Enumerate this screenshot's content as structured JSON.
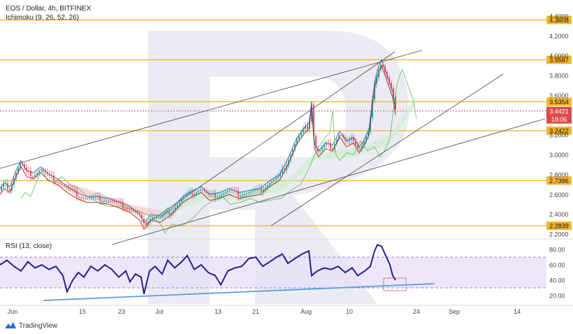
{
  "header": {
    "title": "EOS / Dollar, 4h, BITFINEX",
    "indicator": "Ichimoku (9, 26, 52, 26)",
    "rsi_label": "RSI (13, close)"
  },
  "brand": {
    "name": "TradingView"
  },
  "colors": {
    "level": "#f2b52c",
    "current_price": "#e04a4a",
    "rsi_line": "#2a1c8f",
    "rsi_band": "#e9e1f8",
    "trendline": "#444444",
    "rsi_trendline": "#5b9ae6",
    "cloud_red": "#f6c9c9",
    "cloud_green": "#cfeecf",
    "watermark": "#1e2a7a"
  },
  "chart_data": [
    {
      "type": "candlestick",
      "title": "EOS / Dollar, 4h, BITFINEX",
      "x_ticks": [
        "Jun",
        "15",
        "23",
        "Jul",
        "13",
        "21",
        "Aug",
        "10",
        "24",
        "Sep",
        "14"
      ],
      "y_ticks": [
        "4.4000",
        "4.2000",
        "4.0000",
        "3.8000",
        "3.6000",
        "3.2000",
        "3.0000",
        "2.8000",
        "2.6000",
        "2.4000",
        "2.2000"
      ],
      "ylim": [
        2.14,
        4.46
      ],
      "horizontal_levels": [
        "4.3608",
        "3.9587",
        "3.5354",
        "3.2422",
        "2.7396",
        "2.2839"
      ],
      "current_price": "3.4421",
      "countdown": "19:06",
      "price_path": [
        [
          0,
          2.64
        ],
        [
          6,
          2.7
        ],
        [
          14,
          2.66
        ],
        [
          24,
          2.84
        ],
        [
          30,
          2.92
        ],
        [
          38,
          2.82
        ],
        [
          48,
          2.8
        ],
        [
          58,
          2.86
        ],
        [
          70,
          2.78
        ],
        [
          82,
          2.74
        ],
        [
          96,
          2.66
        ],
        [
          110,
          2.6
        ],
        [
          124,
          2.56
        ],
        [
          140,
          2.56
        ],
        [
          156,
          2.54
        ],
        [
          172,
          2.5
        ],
        [
          186,
          2.46
        ],
        [
          200,
          2.38
        ],
        [
          206,
          2.29
        ],
        [
          216,
          2.38
        ],
        [
          230,
          2.36
        ],
        [
          246,
          2.44
        ],
        [
          262,
          2.56
        ],
        [
          276,
          2.62
        ],
        [
          288,
          2.66
        ],
        [
          300,
          2.58
        ],
        [
          314,
          2.6
        ],
        [
          328,
          2.64
        ],
        [
          342,
          2.6
        ],
        [
          356,
          2.62
        ],
        [
          372,
          2.64
        ],
        [
          386,
          2.72
        ],
        [
          400,
          2.78
        ],
        [
          412,
          2.94
        ],
        [
          424,
          3.14
        ],
        [
          436,
          3.26
        ],
        [
          442,
          3.3
        ],
        [
          446,
          3.52
        ],
        [
          450,
          3.1
        ],
        [
          456,
          3.02
        ],
        [
          466,
          3.1
        ],
        [
          476,
          3.08
        ],
        [
          486,
          3.22
        ],
        [
          496,
          3.12
        ],
        [
          506,
          3.16
        ],
        [
          514,
          3.06
        ],
        [
          520,
          3.12
        ],
        [
          528,
          3.24
        ],
        [
          534,
          3.6
        ],
        [
          538,
          3.78
        ],
        [
          542,
          3.88
        ],
        [
          546,
          3.94
        ],
        [
          550,
          3.86
        ],
        [
          554,
          3.78
        ],
        [
          558,
          3.7
        ],
        [
          562,
          3.62
        ],
        [
          566,
          3.44
        ]
      ],
      "ichimoku_cloud_sample": [
        [
          96,
          2.72
        ],
        [
          140,
          2.62
        ],
        [
          186,
          2.5
        ],
        [
          230,
          2.44
        ],
        [
          290,
          2.62
        ],
        [
          350,
          2.62
        ],
        [
          410,
          2.74
        ],
        [
          450,
          3.02
        ],
        [
          510,
          3.06
        ],
        [
          560,
          3.2
        ],
        [
          594,
          3.58
        ]
      ]
    },
    {
      "type": "line",
      "title": "RSI (13, close)",
      "y_ticks": [
        "80.00",
        "60.00",
        "40.00",
        "20.00"
      ],
      "ylim": [
        14,
        90
      ],
      "band": [
        30,
        70
      ],
      "series": [
        {
          "values_path": [
            [
              0,
              60
            ],
            [
              10,
              66
            ],
            [
              20,
              58
            ],
            [
              30,
              52
            ],
            [
              40,
              64
            ],
            [
              50,
              56
            ],
            [
              60,
              60
            ],
            [
              70,
              54
            ],
            [
              80,
              58
            ],
            [
              90,
              46
            ],
            [
              96,
              25
            ],
            [
              104,
              40
            ],
            [
              112,
              50
            ],
            [
              120,
              44
            ],
            [
              130,
              58
            ],
            [
              140,
              52
            ],
            [
              150,
              60
            ],
            [
              160,
              54
            ],
            [
              170,
              44
            ],
            [
              180,
              52
            ],
            [
              186,
              38
            ],
            [
              194,
              48
            ],
            [
              202,
              44
            ],
            [
              206,
              22
            ],
            [
              214,
              52
            ],
            [
              222,
              58
            ],
            [
              232,
              48
            ],
            [
              240,
              66
            ],
            [
              250,
              56
            ],
            [
              260,
              64
            ],
            [
              268,
              72
            ],
            [
              278,
              54
            ],
            [
              288,
              60
            ],
            [
              298,
              50
            ],
            [
              308,
              46
            ],
            [
              316,
              34
            ],
            [
              326,
              52
            ],
            [
              336,
              56
            ],
            [
              346,
              58
            ],
            [
              356,
              68
            ],
            [
              366,
              70
            ],
            [
              376,
              58
            ],
            [
              386,
              64
            ],
            [
              396,
              70
            ],
            [
              404,
              74
            ],
            [
              412,
              62
            ],
            [
              422,
              68
            ],
            [
              432,
              74
            ],
            [
              442,
              78
            ],
            [
              446,
              46
            ],
            [
              454,
              52
            ],
            [
              464,
              56
            ],
            [
              474,
              54
            ],
            [
              484,
              58
            ],
            [
              494,
              50
            ],
            [
              504,
              56
            ],
            [
              512,
              46
            ],
            [
              522,
              52
            ],
            [
              530,
              58
            ],
            [
              536,
              78
            ],
            [
              540,
              86
            ],
            [
              546,
              84
            ],
            [
              552,
              72
            ],
            [
              558,
              60
            ],
            [
              562,
              46
            ],
            [
              566,
              40
            ]
          ]
        }
      ]
    }
  ]
}
